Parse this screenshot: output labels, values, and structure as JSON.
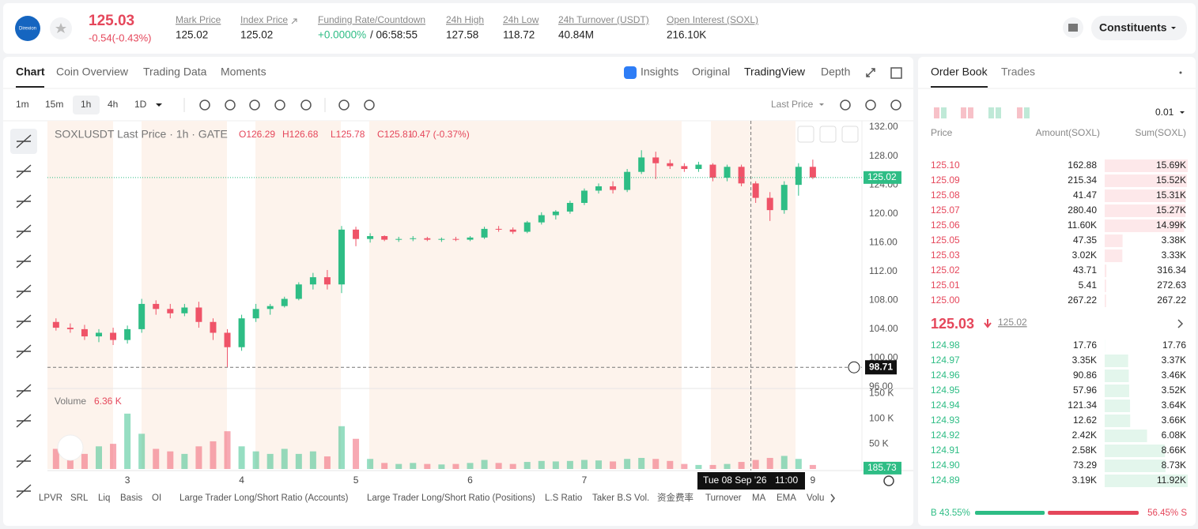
{
  "header": {
    "logo": "Direxion",
    "price": "125.03",
    "change": "-0.54(-0.43%)",
    "stats": [
      {
        "label": "Mark Price",
        "value": "125.02"
      },
      {
        "label": "Index Price",
        "value": "125.02"
      },
      {
        "label": "Funding Rate/Countdown",
        "value": "+0.0000%",
        "countdown": "/ 06:58:55"
      },
      {
        "label": "24h High",
        "value": "127.58"
      },
      {
        "label": "24h Low",
        "value": "118.72"
      },
      {
        "label": "24h Turnover (USDT)",
        "value": "40.84M"
      },
      {
        "label": "Open Interest (SOXL)",
        "value": "216.10K"
      }
    ],
    "button": "Constituents"
  },
  "chart_tabs": [
    "Chart",
    "Coin Overview",
    "Trading Data",
    "Moments"
  ],
  "view_tabs": [
    "Insights",
    "Original",
    "TradingView",
    "Depth"
  ],
  "intervals": [
    "1m",
    "15m",
    "1h",
    "4h",
    "1D"
  ],
  "price_source": "Last Price",
  "chart_data": {
    "type": "candlestick",
    "title": "SOXLUSDT Last Price · 1h · GATE",
    "ohlc_legend": [
      "O126.29",
      "H126.68",
      "L125.78",
      "C125.81",
      "-0.47 (-0.37%)"
    ],
    "x": [
      2.375,
      2.5,
      2.625,
      2.75,
      2.875,
      3,
      3.125,
      3.25,
      3.375,
      3.5,
      3.625,
      3.75,
      3.875,
      4,
      4.125,
      4.25,
      4.375,
      4.5,
      4.625,
      4.75,
      4.875,
      5,
      5.125,
      5.25,
      5.375,
      5.5,
      5.625,
      5.75,
      5.875,
      6,
      6.125,
      6.25,
      6.375,
      6.5,
      6.625,
      6.75,
      6.875,
      7,
      7.125,
      7.25,
      7.375,
      7.5,
      7.625,
      7.75,
      7.875,
      8,
      8.125,
      8.25,
      8.375,
      8.5,
      8.625,
      8.75,
      8.875,
      9
    ],
    "open": [
      105,
      104.2,
      104,
      103,
      103.5,
      102.5,
      104,
      107.5,
      106.8,
      106.2,
      107,
      105,
      103.5,
      101.5,
      105.5,
      106.8,
      107.2,
      108.2,
      110.2,
      111.2,
      110.2,
      117.8,
      116.5,
      116.9,
      116.4,
      116.5,
      116.6,
      116.4,
      116.5,
      116.4,
      116.7,
      117.9,
      117.8,
      117.5,
      118.8,
      119.8,
      120.3,
      121.5,
      123.2,
      123.8,
      123.3,
      125.8,
      127.8,
      127,
      126.6,
      126.2,
      126.8,
      125,
      126.5,
      124.2,
      122.2,
      120.5,
      124,
      126.5
    ],
    "high": [
      105.5,
      104.8,
      104.6,
      104,
      104.2,
      104.5,
      108.2,
      108,
      107.5,
      107.5,
      107.8,
      105.5,
      104,
      106,
      107.5,
      107.5,
      108.5,
      110.5,
      111.8,
      112.2,
      118.3,
      118.2,
      117.3,
      117,
      116.8,
      116.9,
      116.8,
      116.7,
      116.8,
      116.9,
      118.2,
      118.3,
      118.1,
      119,
      120.2,
      120.5,
      121.8,
      123.5,
      124.2,
      124.5,
      126.2,
      128.8,
      128.6,
      127.5,
      127,
      127.2,
      127,
      126.8,
      126.8,
      124.5,
      123,
      124.5,
      127,
      127.5
    ],
    "low": [
      103.8,
      103.5,
      102.5,
      102.2,
      101.8,
      102,
      103.5,
      106,
      105.5,
      105.8,
      104.2,
      102.5,
      98.71,
      101,
      105,
      106,
      107,
      108,
      109.5,
      109.5,
      109,
      115.5,
      116,
      116.2,
      116.1,
      116.2,
      116.2,
      116.1,
      116.2,
      116.2,
      116.5,
      117.5,
      117.2,
      117.3,
      118.5,
      119.2,
      120,
      121.2,
      122.8,
      122.8,
      123,
      125.5,
      124.8,
      126.2,
      125.8,
      125.8,
      124.5,
      124.5,
      123.8,
      121.5,
      119,
      120,
      122.5,
      124.8
    ],
    "close": [
      104.2,
      104,
      103,
      103.5,
      102.5,
      104,
      107.5,
      106.8,
      106.2,
      107,
      105,
      103.5,
      101.5,
      105.5,
      106.8,
      107.2,
      108.2,
      110.2,
      111.2,
      110.2,
      117.8,
      116.5,
      116.9,
      116.4,
      116.5,
      116.6,
      116.4,
      116.5,
      116.4,
      116.7,
      117.9,
      117.8,
      117.5,
      118.8,
      119.8,
      120.3,
      121.5,
      123.2,
      123.8,
      123.3,
      125.8,
      127.8,
      127,
      126.6,
      126.2,
      126.8,
      125,
      126.5,
      124.2,
      122.2,
      120.5,
      124,
      126.5,
      125.02
    ],
    "xlim": [
      2.3,
      9.43
    ],
    "xticks": [
      3,
      4,
      5,
      6,
      7,
      9
    ],
    "ylim": [
      96,
      132.88
    ],
    "yticks": [
      {
        "value": 96,
        "label": "96.00"
      },
      {
        "value": 100,
        "label": "100.00"
      },
      {
        "value": 104,
        "label": "104.00"
      },
      {
        "value": 108,
        "label": "108.00"
      },
      {
        "value": 112,
        "label": "112.00"
      },
      {
        "value": 116,
        "label": "116.00"
      },
      {
        "value": 120,
        "label": "120.00"
      },
      {
        "value": 124,
        "label": "124.00"
      },
      {
        "value": 128,
        "label": "128.00"
      },
      {
        "value": 132,
        "label": "132.00"
      }
    ],
    "last_price": 125.02,
    "crosshair_price": 98.71,
    "crosshair_x": 8.458,
    "crosshair_date": "Tue 08 Sep '26",
    "crosshair_time": "11:00",
    "colors": {
      "up": "#2ebd85",
      "down": "#ef5368"
    },
    "volume": {
      "title": "Volume",
      "legend_value": "6.36 K",
      "values": [
        40000,
        35000,
        30000,
        45000,
        50000,
        110000,
        70000,
        40000,
        35000,
        30000,
        45000,
        55000,
        75000,
        45000,
        35000,
        30000,
        40000,
        30000,
        35000,
        25000,
        85000,
        60000,
        20000,
        12000,
        10000,
        12000,
        10000,
        9000,
        10000,
        12000,
        18000,
        12000,
        10000,
        14000,
        16000,
        15000,
        16000,
        18000,
        17000,
        15000,
        20000,
        22000,
        20000,
        16000,
        10000,
        8000,
        8000,
        10000,
        14000,
        18000,
        22000,
        26000,
        20000,
        8000
      ],
      "ylim": [
        0,
        160000
      ],
      "yticks": [
        {
          "value": 50000,
          "label": "50 K"
        },
        {
          "value": 100000,
          "label": "100 K"
        },
        {
          "value": 150000,
          "label": "150 K"
        }
      ],
      "last_value": 185.73
    }
  },
  "indicators": [
    "LPVR",
    "SRL",
    "Liq",
    "Basis",
    "OI",
    "Large Trader Long/Short Ratio (Accounts)",
    "Large Trader Long/Short Ratio (Positions)",
    "L.S Ratio",
    "Taker B.S Vol.",
    "资金费率",
    "Turnover",
    "MA",
    "EMA",
    "Volu"
  ],
  "order_book": {
    "tabs": [
      "Order Book",
      "Trades"
    ],
    "precision": "0.01",
    "columns": [
      "Price",
      "Amount(SOXL)",
      "Sum(SOXL)"
    ],
    "asks": [
      [
        "125.10",
        "162.88",
        {
          "value": 15690,
          "label": "15.69K"
        }
      ],
      [
        "125.09",
        "215.34",
        {
          "value": 15520,
          "label": "15.52K"
        }
      ],
      [
        "125.08",
        "41.47",
        {
          "value": 15310,
          "label": "15.31K"
        }
      ],
      [
        "125.07",
        "280.40",
        {
          "value": 15270,
          "label": "15.27K"
        }
      ],
      [
        "125.06",
        "11.60K",
        {
          "value": 14990,
          "label": "14.99K"
        }
      ],
      [
        "125.05",
        "47.35",
        {
          "value": 3380,
          "label": "3.38K"
        }
      ],
      [
        "125.03",
        "3.02K",
        {
          "value": 3330,
          "label": "3.33K"
        }
      ],
      [
        "125.02",
        "43.71",
        316.34
      ],
      [
        "125.01",
        "5.41",
        272.63
      ],
      [
        "125.00",
        "267.22",
        267.22
      ]
    ],
    "last": "125.03",
    "mark": "125.02",
    "bids": [
      [
        "124.98",
        "17.76",
        17.76
      ],
      [
        "124.97",
        "3.35K",
        {
          "value": 3370,
          "label": "3.37K"
        }
      ],
      [
        "124.96",
        "90.86",
        {
          "value": 3460,
          "label": "3.46K"
        }
      ],
      [
        "124.95",
        "57.96",
        {
          "value": 3520,
          "label": "3.52K"
        }
      ],
      [
        "124.94",
        "121.34",
        {
          "value": 3640,
          "label": "3.64K"
        }
      ],
      [
        "124.93",
        "12.62",
        {
          "value": 3660,
          "label": "3.66K"
        }
      ],
      [
        "124.92",
        "2.42K",
        {
          "value": 6080,
          "label": "6.08K"
        }
      ],
      [
        "124.91",
        "2.58K",
        {
          "value": 8660,
          "label": "8.66K"
        }
      ],
      [
        "124.90",
        "73.29",
        {
          "value": 8730,
          "label": "8.73K"
        }
      ],
      [
        "124.89",
        "3.19K",
        {
          "value": 11920,
          "label": "11.92K"
        }
      ]
    ],
    "buy": {
      "value": 43.55,
      "label": "B 43.55%"
    },
    "sell": {
      "value": 56.45,
      "label": "56.45% S"
    }
  }
}
